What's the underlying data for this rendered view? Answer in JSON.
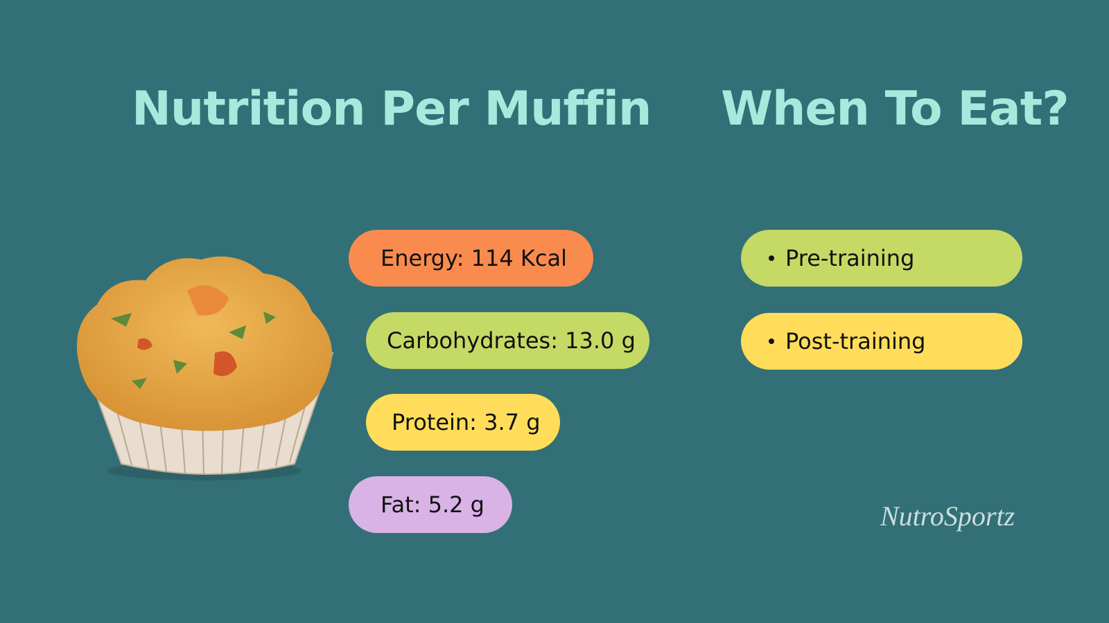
{
  "left_panel": {
    "title": "Nutrition Per Muffin",
    "items": [
      "Energy: 114 Kcal",
      "Carbohydrates: 13.0 g",
      "Protein: 3.7 g",
      "Fat: 5.2 g"
    ]
  },
  "right_panel": {
    "title": "When To Eat?",
    "items": [
      "Pre-training",
      "Post-training"
    ]
  },
  "brand": "NutroSportz"
}
